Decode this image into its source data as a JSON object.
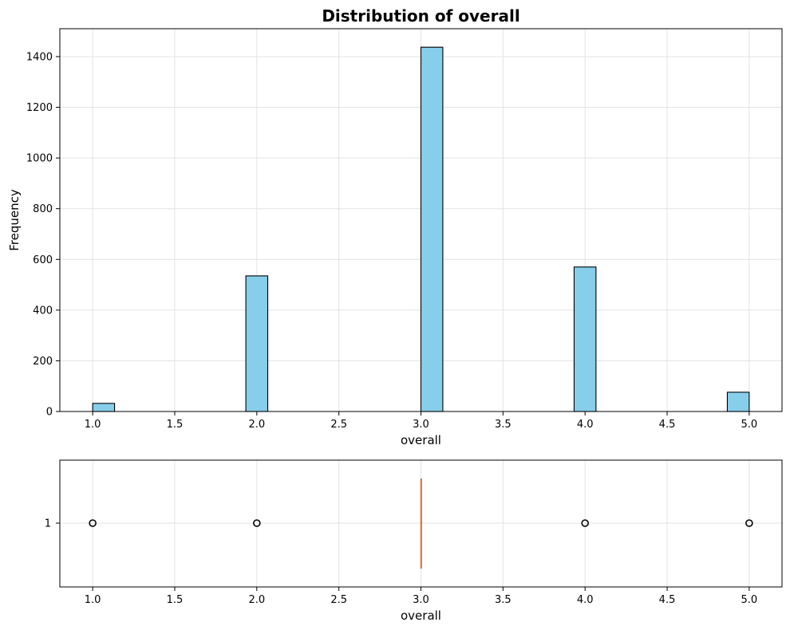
{
  "chart_data": [
    {
      "type": "bar",
      "title": "Distribution of overall",
      "xlabel": "overall",
      "ylabel": "Frequency",
      "xlim": [
        0.8,
        5.2
      ],
      "ylim": [
        0,
        1510
      ],
      "x_ticks": [
        "1.0",
        "1.5",
        "2.0",
        "2.5",
        "3.0",
        "3.5",
        "4.0",
        "4.5",
        "5.0"
      ],
      "y_ticks": [
        "0",
        "200",
        "400",
        "600",
        "800",
        "1000",
        "1200",
        "1400"
      ],
      "bin_width": 0.1333,
      "bins": [
        {
          "x_start": 1.0,
          "value": 32
        },
        {
          "x_start": 1.9333,
          "value": 535
        },
        {
          "x_start": 3.0,
          "value": 1437
        },
        {
          "x_start": 3.9333,
          "value": 570
        },
        {
          "x_start": 4.8667,
          "value": 76
        }
      ],
      "bar_color": "#87ceeb",
      "edge_color": "#000000",
      "grid": true
    },
    {
      "type": "boxplot",
      "xlabel": "overall",
      "xlim": [
        0.8,
        5.2
      ],
      "x_ticks": [
        "1.0",
        "1.5",
        "2.0",
        "2.5",
        "3.0",
        "3.5",
        "4.0",
        "4.5",
        "5.0"
      ],
      "y_ticks": [
        "1"
      ],
      "box": {
        "q1": 3.0,
        "median": 3.0,
        "q3": 3.0,
        "whisker_low": 3.0,
        "whisker_high": 3.0
      },
      "outliers": [
        1.0,
        2.0,
        4.0,
        5.0
      ],
      "median_color": "#e07b39",
      "grid": true
    }
  ]
}
